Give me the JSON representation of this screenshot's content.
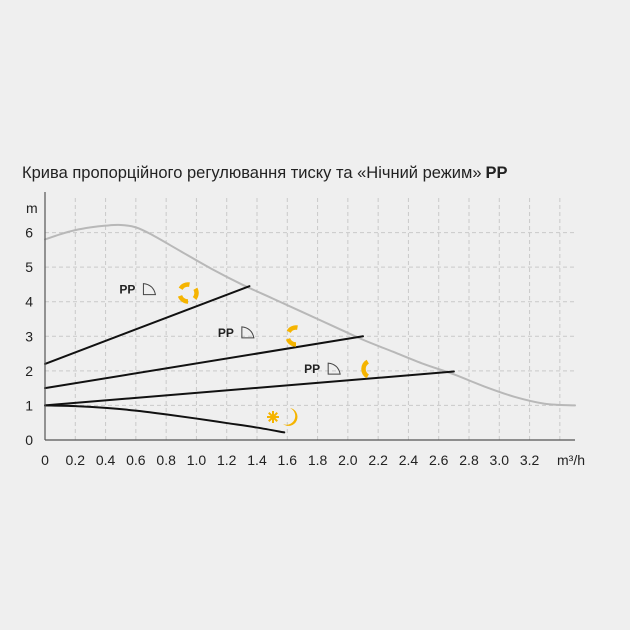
{
  "chart_data": {
    "type": "line",
    "title": "Крива пропорційного регулювання тиску та «Нічний режим»",
    "title_bold": "PP",
    "ylabel": "m",
    "xlabel": "m³/h",
    "xlim": [
      0,
      3.5
    ],
    "ylim": [
      0,
      7
    ],
    "x_ticks": [
      "0",
      "0.2",
      "0.4",
      "0.6",
      "0.8",
      "1.0",
      "1.2",
      "1.4",
      "1.6",
      "1.8",
      "2.0",
      "2.2",
      "2.4",
      "2.6",
      "2.8",
      "3.0",
      "3.2"
    ],
    "x_tick_values": [
      0,
      0.2,
      0.4,
      0.6,
      0.8,
      1.0,
      1.2,
      1.4,
      1.6,
      1.8,
      2.0,
      2.2,
      2.4,
      2.6,
      2.8,
      3.0,
      3.2
    ],
    "y_ticks": [
      "0",
      "1",
      "2",
      "3",
      "4",
      "5",
      "6"
    ],
    "y_tick_values": [
      0,
      1,
      2,
      3,
      4,
      5,
      6
    ],
    "grid": true,
    "series": [
      {
        "role": "max-curve",
        "color": "#b8b8b8",
        "x": [
          0,
          0.1,
          0.2,
          0.3,
          0.4,
          0.5,
          0.6,
          0.7,
          0.9,
          1.1,
          1.3,
          1.5,
          1.7,
          1.9,
          2.1,
          2.3,
          2.5,
          2.7,
          2.9,
          3.1,
          3.3,
          3.5
        ],
        "y": [
          5.8,
          5.95,
          6.07,
          6.15,
          6.2,
          6.22,
          6.15,
          5.95,
          5.45,
          4.95,
          4.5,
          4.1,
          3.7,
          3.3,
          2.9,
          2.55,
          2.2,
          1.9,
          1.55,
          1.25,
          1.05,
          1.0
        ]
      },
      {
        "role": "pp-high",
        "color": "#111111",
        "x": [
          0,
          1.35
        ],
        "y": [
          2.2,
          4.45
        ]
      },
      {
        "role": "pp-mid",
        "color": "#111111",
        "x": [
          0,
          2.1
        ],
        "y": [
          1.5,
          3.0
        ]
      },
      {
        "role": "pp-low",
        "color": "#111111",
        "x": [
          0,
          2.7
        ],
        "y": [
          1.0,
          1.98
        ]
      },
      {
        "role": "night-mode",
        "color": "#111111",
        "x": [
          0,
          0.2,
          0.4,
          0.6,
          0.8,
          1.0,
          1.2,
          1.4,
          1.58
        ],
        "y": [
          1.0,
          0.98,
          0.93,
          0.85,
          0.74,
          0.62,
          0.49,
          0.36,
          0.22
        ]
      }
    ],
    "annotations": [
      {
        "text": "PP",
        "x": 0.65,
        "y": 4.35,
        "mode": "high"
      },
      {
        "text": "PP",
        "x": 1.3,
        "y": 3.1,
        "mode": "mid"
      },
      {
        "text": "PP",
        "x": 1.87,
        "y": 2.05,
        "mode": "low"
      }
    ]
  },
  "colors": {
    "accent": "#f5b400",
    "background": "#efefef"
  },
  "icons": [
    "speed-3-icon",
    "speed-2-icon",
    "speed-1-icon",
    "night-mode-icon"
  ]
}
